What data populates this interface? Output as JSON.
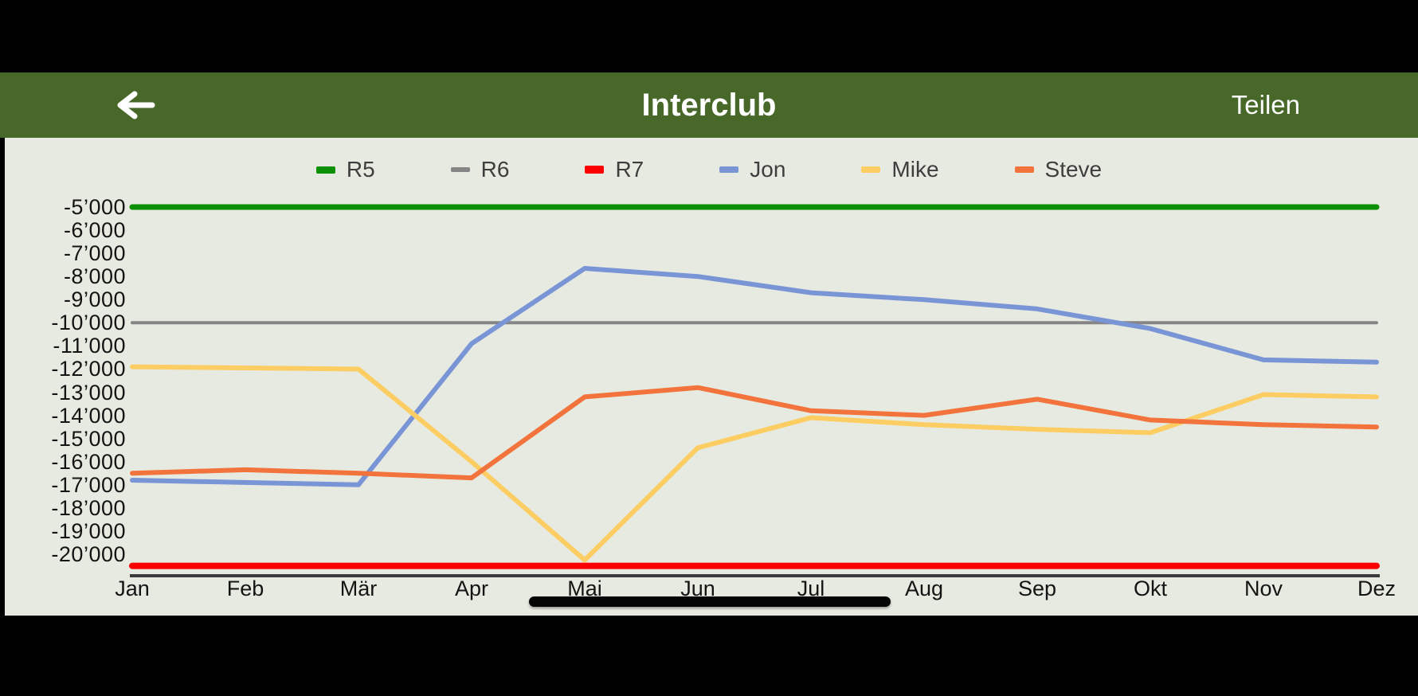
{
  "header": {
    "title": "Interclub",
    "share_label": "Teilen",
    "back_icon": "arrow-left-icon"
  },
  "chart_data": {
    "type": "line",
    "title": "",
    "xlabel": "",
    "ylabel": "",
    "legend_position": "top",
    "grid": false,
    "ylim": [
      -20500,
      -5000
    ],
    "categories": [
      "Jan",
      "Feb",
      "Mär",
      "Apr",
      "Mai",
      "Jun",
      "Jul",
      "Aug",
      "Sep",
      "Okt",
      "Nov",
      "Dez"
    ],
    "y_ticks": [
      {
        "value": -5000,
        "label": "-5’000"
      },
      {
        "value": -6000,
        "label": "-6’000"
      },
      {
        "value": -7000,
        "label": "-7’000"
      },
      {
        "value": -8000,
        "label": "-8’000"
      },
      {
        "value": -9000,
        "label": "-9’000"
      },
      {
        "value": -10000,
        "label": "-10’000"
      },
      {
        "value": -11000,
        "label": "-11’000"
      },
      {
        "value": -12000,
        "label": "-12’000"
      },
      {
        "value": -13000,
        "label": "-13’000"
      },
      {
        "value": -14000,
        "label": "-14’000"
      },
      {
        "value": -15000,
        "label": "-15’000"
      },
      {
        "value": -16000,
        "label": "-16’000"
      },
      {
        "value": -17000,
        "label": "-17’000"
      },
      {
        "value": -18000,
        "label": "-18’000"
      },
      {
        "value": -19000,
        "label": "-19’000"
      },
      {
        "value": -20000,
        "label": "-20’000"
      }
    ],
    "series": [
      {
        "name": "R5",
        "color": "#0a9000",
        "width": 7,
        "value": -5000
      },
      {
        "name": "R6",
        "color": "#858585",
        "width": 4,
        "value": -10000
      },
      {
        "name": "R7",
        "color": "#fb0000",
        "width": 8,
        "value": -20500
      },
      {
        "name": "Jon",
        "color": "#7a95d6",
        "width": 6,
        "values": [
          -16800,
          -16900,
          -17000,
          -10900,
          -7650,
          -8000,
          -8700,
          -9000,
          -9400,
          -10250,
          -11600,
          -11700
        ]
      },
      {
        "name": "Mike",
        "color": "#fccd63",
        "width": 6,
        "values": [
          -11900,
          -11950,
          -12000,
          -16000,
          -20250,
          -15400,
          -14100,
          -14400,
          -14600,
          -14750,
          -13100,
          -13200
        ]
      },
      {
        "name": "Steve",
        "color": "#f2733c",
        "width": 6,
        "values": [
          -16500,
          -16350,
          -16500,
          -16700,
          -13200,
          -12800,
          -13800,
          -14000,
          -13300,
          -14200,
          -14400,
          -14500
        ]
      }
    ]
  }
}
